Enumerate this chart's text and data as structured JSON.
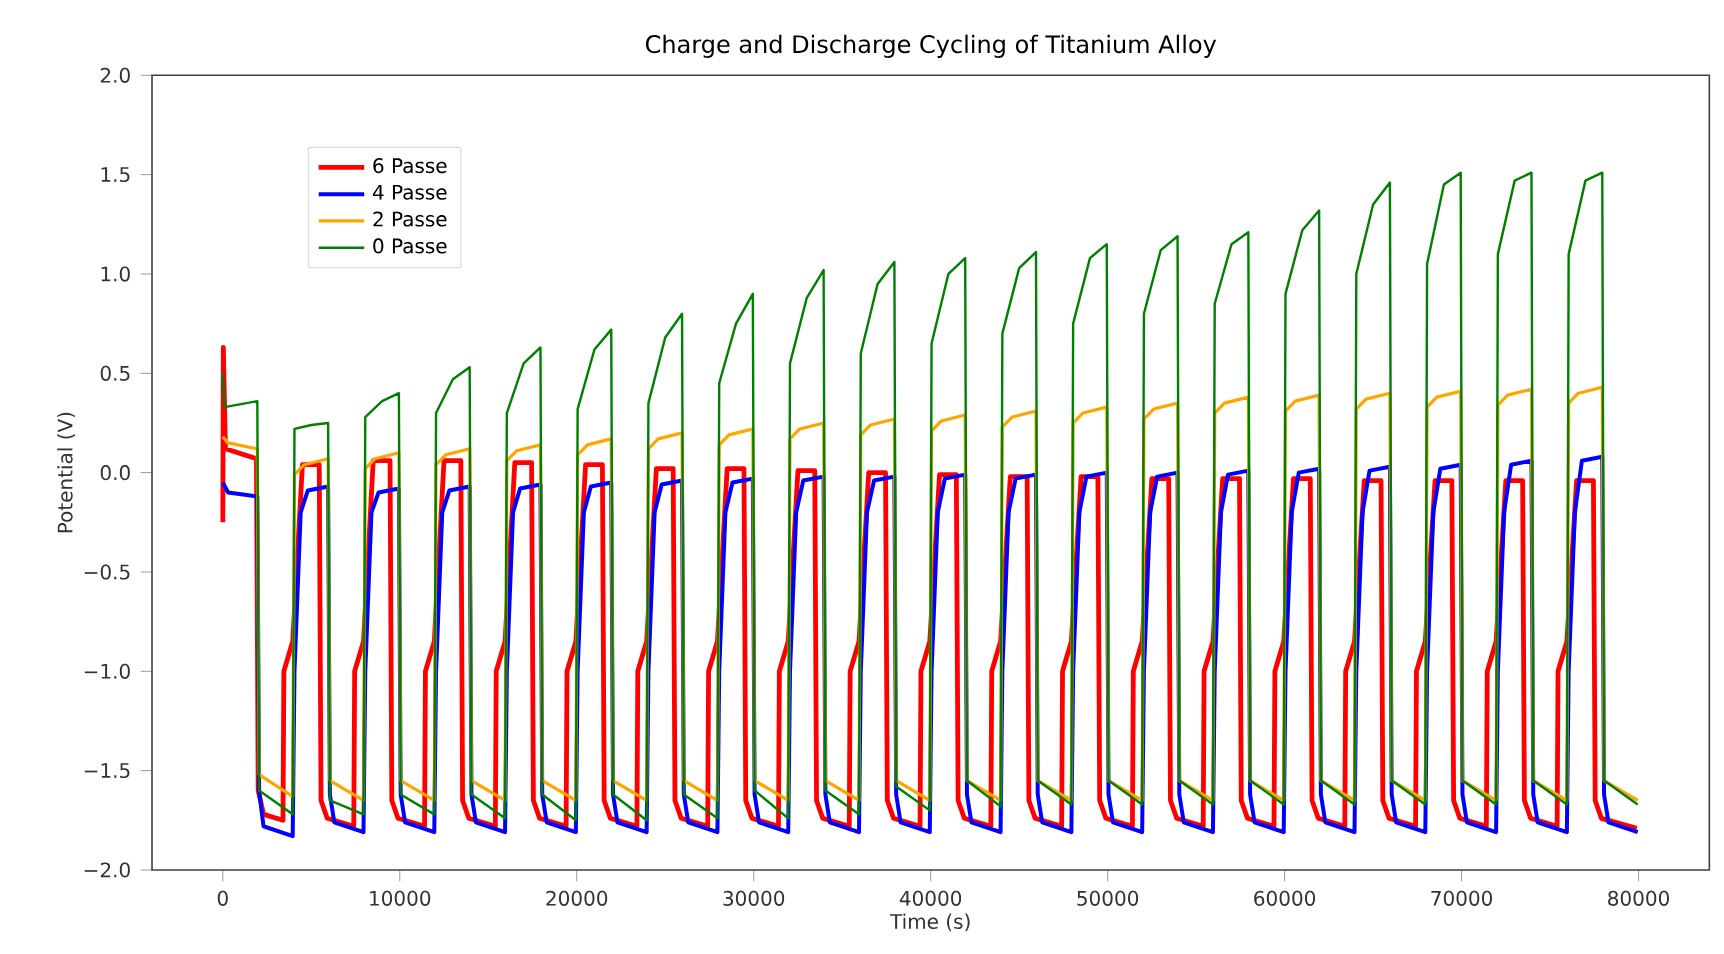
{
  "chart_data": {
    "type": "line",
    "title": "Charge and Discharge Cycling of Titanium Alloy",
    "xlabel": "Time (s)",
    "ylabel": "Potential (V)",
    "xlim": [
      -4000,
      84000
    ],
    "ylim": [
      -2,
      2
    ],
    "xticks": [
      0,
      10000,
      20000,
      30000,
      40000,
      50000,
      60000,
      70000,
      80000
    ],
    "yticks": [
      {
        "value": -2,
        "label": "−2.0"
      },
      {
        "value": -1.5,
        "label": "−1.5"
      },
      {
        "value": -1,
        "label": "−1.0"
      },
      {
        "value": -0.5,
        "label": "−0.5"
      },
      {
        "value": 0,
        "label": "0.0"
      },
      {
        "value": 0.5,
        "label": "0.5"
      },
      {
        "value": 1,
        "label": "1.0"
      },
      {
        "value": 1.5,
        "label": "1.5"
      },
      {
        "value": 2,
        "label": "2.0"
      }
    ],
    "legend": "top left",
    "grid": false,
    "marker": "none",
    "line_style": "solid",
    "series": [
      {
        "name": "6 Passe",
        "color": "#ff0000",
        "x": [
          0,
          30,
          150,
          1900,
          2000,
          2300,
          3400,
          3450,
          3950,
          4500,
          5450,
          5550,
          5900,
          7400,
          7450,
          7950,
          8500,
          9450,
          9550,
          9900,
          11400,
          11450,
          11950,
          12500,
          13450,
          13550,
          13900,
          15400,
          15450,
          15950,
          16500,
          17450,
          17550,
          17900,
          19400,
          19450,
          19950,
          20500,
          21450,
          21550,
          21900,
          23400,
          23450,
          23950,
          24500,
          25450,
          25550,
          25900,
          27400,
          27450,
          27950,
          28500,
          29450,
          29550,
          29900,
          31400,
          31450,
          31950,
          32500,
          33450,
          33550,
          33900,
          35400,
          35450,
          35950,
          36500,
          37450,
          37550,
          37900,
          39400,
          39450,
          39950,
          40500,
          41450,
          41550,
          41900,
          43400,
          43450,
          43950,
          44500,
          45450,
          45550,
          45900,
          47400,
          47450,
          47950,
          48500,
          49450,
          49550,
          49900,
          51400,
          51450,
          51950,
          52500,
          53450,
          53550,
          53900,
          55400,
          55450,
          55950,
          56500,
          57450,
          57550,
          57900,
          59400,
          59450,
          59950,
          60500,
          61450,
          61550,
          61900,
          63400,
          63450,
          63950,
          64500,
          65450,
          65550,
          65900,
          67400,
          67450,
          67950,
          68500,
          69450,
          69550,
          69900,
          71400,
          71450,
          71950,
          72500,
          73450,
          73550,
          73900,
          75400,
          75450,
          75950,
          76500,
          77450,
          77550,
          77900,
          79900
        ],
        "values": [
          -0.25,
          0.63,
          0.12,
          0.07,
          -1.6,
          -1.72,
          -1.75,
          -1.0,
          -0.85,
          0.04,
          0.04,
          -1.65,
          -1.74,
          -1.78,
          -1.0,
          -0.85,
          0.06,
          0.06,
          -1.65,
          -1.74,
          -1.78,
          -1.0,
          -0.85,
          0.06,
          0.06,
          -1.65,
          -1.74,
          -1.78,
          -1.0,
          -0.85,
          0.05,
          0.05,
          -1.65,
          -1.74,
          -1.78,
          -1.0,
          -0.85,
          0.04,
          0.04,
          -1.65,
          -1.74,
          -1.78,
          -1.0,
          -0.85,
          0.02,
          0.02,
          -1.65,
          -1.74,
          -1.78,
          -1.0,
          -0.85,
          0.02,
          0.02,
          -1.65,
          -1.74,
          -1.78,
          -1.0,
          -0.85,
          0.01,
          0.01,
          -1.65,
          -1.74,
          -1.78,
          -1.0,
          -0.85,
          0.0,
          0.0,
          -1.65,
          -1.74,
          -1.78,
          -1.0,
          -0.85,
          -0.01,
          -0.01,
          -1.65,
          -1.74,
          -1.78,
          -1.0,
          -0.85,
          -0.02,
          -0.02,
          -1.65,
          -1.74,
          -1.78,
          -1.0,
          -0.85,
          -0.02,
          -0.02,
          -1.65,
          -1.74,
          -1.78,
          -1.0,
          -0.85,
          -0.03,
          -0.03,
          -1.65,
          -1.74,
          -1.78,
          -1.0,
          -0.85,
          -0.03,
          -0.03,
          -1.65,
          -1.74,
          -1.78,
          -1.0,
          -0.85,
          -0.03,
          -0.03,
          -1.65,
          -1.74,
          -1.78,
          -1.0,
          -0.85,
          -0.04,
          -0.04,
          -1.65,
          -1.74,
          -1.78,
          -1.0,
          -0.85,
          -0.04,
          -0.04,
          -1.65,
          -1.74,
          -1.78,
          -1.0,
          -0.85,
          -0.04,
          -0.04,
          -1.65,
          -1.74,
          -1.78,
          -1.0,
          -0.85,
          -0.04,
          -0.04,
          -1.65,
          -1.74,
          -1.79
        ]
      },
      {
        "name": "4 Passe",
        "color": "#0000ff",
        "x": [
          0,
          300,
          1950,
          2050,
          2300,
          3950,
          4050,
          4400,
          4800,
          5950,
          6050,
          6300,
          7950,
          8050,
          8400,
          8800,
          9950,
          10050,
          10300,
          11950,
          12050,
          12400,
          12800,
          13950,
          14050,
          14300,
          15950,
          16050,
          16400,
          16800,
          17950,
          18050,
          18300,
          19950,
          20050,
          20400,
          20800,
          21950,
          22050,
          22300,
          23950,
          24050,
          24400,
          24800,
          25950,
          26050,
          26300,
          27950,
          28050,
          28400,
          28800,
          29950,
          30050,
          30300,
          31950,
          32050,
          32400,
          32800,
          33950,
          34050,
          34300,
          35950,
          36050,
          36400,
          36800,
          37950,
          38050,
          38300,
          39950,
          40050,
          40400,
          40800,
          41950,
          42050,
          42300,
          43950,
          44050,
          44400,
          44800,
          45950,
          46050,
          46300,
          47950,
          48050,
          48400,
          48800,
          49950,
          50050,
          50300,
          51950,
          52050,
          52400,
          52800,
          53950,
          54050,
          54300,
          55950,
          56050,
          56400,
          56800,
          57950,
          58050,
          58300,
          59950,
          60050,
          60400,
          60800,
          61950,
          62050,
          62300,
          63950,
          64050,
          64400,
          64800,
          65950,
          66050,
          66300,
          67950,
          68050,
          68400,
          68800,
          69950,
          70050,
          70300,
          71950,
          72050,
          72400,
          72800,
          73950,
          74050,
          74300,
          75950,
          76050,
          76400,
          76800,
          77950,
          78050,
          78300,
          79950
        ],
        "values": [
          -0.05,
          -0.1,
          -0.12,
          -1.6,
          -1.78,
          -1.83,
          -1.0,
          -0.2,
          -0.09,
          -0.07,
          -1.62,
          -1.76,
          -1.81,
          -1.0,
          -0.2,
          -0.1,
          -0.08,
          -1.62,
          -1.76,
          -1.81,
          -1.0,
          -0.2,
          -0.09,
          -0.07,
          -1.62,
          -1.76,
          -1.81,
          -1.0,
          -0.2,
          -0.08,
          -0.06,
          -1.62,
          -1.76,
          -1.81,
          -1.0,
          -0.2,
          -0.07,
          -0.05,
          -1.62,
          -1.76,
          -1.81,
          -1.0,
          -0.2,
          -0.06,
          -0.04,
          -1.62,
          -1.76,
          -1.81,
          -1.0,
          -0.2,
          -0.05,
          -0.03,
          -1.62,
          -1.76,
          -1.81,
          -1.0,
          -0.2,
          -0.04,
          -0.02,
          -1.62,
          -1.76,
          -1.81,
          -1.0,
          -0.2,
          -0.04,
          -0.02,
          -1.62,
          -1.76,
          -1.81,
          -1.0,
          -0.2,
          -0.03,
          -0.01,
          -1.62,
          -1.76,
          -1.81,
          -1.0,
          -0.2,
          -0.03,
          -0.01,
          -1.62,
          -1.76,
          -1.81,
          -1.0,
          -0.2,
          -0.02,
          0.0,
          -1.62,
          -1.76,
          -1.81,
          -1.0,
          -0.2,
          -0.02,
          0.0,
          -1.62,
          -1.76,
          -1.81,
          -1.0,
          -0.2,
          -0.01,
          0.01,
          -1.62,
          -1.76,
          -1.81,
          -1.0,
          -0.2,
          0.0,
          0.02,
          -1.62,
          -1.76,
          -1.81,
          -1.0,
          -0.2,
          0.01,
          0.03,
          -1.62,
          -1.76,
          -1.81,
          -1.0,
          -0.2,
          0.02,
          0.04,
          -1.62,
          -1.76,
          -1.81,
          -1.0,
          -0.2,
          0.04,
          0.06,
          -1.62,
          -1.76,
          -1.81,
          -1.0,
          -0.2,
          0.06,
          0.08,
          -1.62,
          -1.76,
          -1.81
        ]
      },
      {
        "name": "2 Passe",
        "color": "#ffa500",
        "x": [
          0,
          300,
          1950,
          2050,
          3950,
          4050,
          4600,
          5950,
          6050,
          7950,
          8050,
          8600,
          9950,
          10050,
          11950,
          12050,
          12600,
          13950,
          14050,
          15950,
          16050,
          16600,
          17950,
          18050,
          19950,
          20050,
          20600,
          21950,
          22050,
          23950,
          24050,
          24600,
          25950,
          26050,
          27950,
          28050,
          28600,
          29950,
          30050,
          31950,
          32050,
          32600,
          33950,
          34050,
          35950,
          36050,
          36600,
          37950,
          38050,
          39950,
          40050,
          40600,
          41950,
          42050,
          43950,
          44050,
          44600,
          45950,
          46050,
          47950,
          48050,
          48600,
          49950,
          50050,
          51950,
          52050,
          52600,
          53950,
          54050,
          55950,
          56050,
          56600,
          57950,
          58050,
          59950,
          60050,
          60600,
          61950,
          62050,
          63950,
          64050,
          64600,
          65950,
          66050,
          67950,
          68050,
          68600,
          69950,
          70050,
          71950,
          72050,
          72600,
          73950,
          74050,
          75950,
          76050,
          76600,
          77950,
          78050,
          79950
        ],
        "values": [
          0.18,
          0.15,
          0.12,
          -1.52,
          -1.63,
          -0.01,
          0.04,
          0.07,
          -1.55,
          -1.65,
          0.02,
          0.07,
          0.1,
          -1.55,
          -1.65,
          0.04,
          0.09,
          0.12,
          -1.55,
          -1.65,
          0.06,
          0.11,
          0.14,
          -1.55,
          -1.65,
          0.09,
          0.14,
          0.17,
          -1.55,
          -1.65,
          0.12,
          0.17,
          0.2,
          -1.55,
          -1.65,
          0.14,
          0.19,
          0.22,
          -1.55,
          -1.65,
          0.17,
          0.22,
          0.25,
          -1.55,
          -1.65,
          0.19,
          0.24,
          0.27,
          -1.55,
          -1.65,
          0.21,
          0.26,
          0.29,
          -1.55,
          -1.65,
          0.23,
          0.28,
          0.31,
          -1.55,
          -1.65,
          0.25,
          0.3,
          0.33,
          -1.55,
          -1.65,
          0.27,
          0.32,
          0.35,
          -1.55,
          -1.65,
          0.3,
          0.35,
          0.38,
          -1.55,
          -1.65,
          0.31,
          0.36,
          0.39,
          -1.55,
          -1.65,
          0.32,
          0.37,
          0.4,
          -1.55,
          -1.65,
          0.33,
          0.38,
          0.41,
          -1.55,
          -1.65,
          0.34,
          0.39,
          0.42,
          -1.55,
          -1.65,
          0.35,
          0.4,
          0.43,
          -1.55,
          -1.65
        ]
      },
      {
        "name": "0 Passe",
        "color": "#008000",
        "x": [
          0,
          100,
          1950,
          2050,
          3950,
          4050,
          5000,
          5950,
          6050,
          7950,
          8050,
          9000,
          9950,
          10050,
          11950,
          12050,
          13000,
          13950,
          14050,
          15950,
          16050,
          17000,
          17950,
          18050,
          19950,
          20050,
          21000,
          21950,
          22050,
          23950,
          24050,
          25000,
          25950,
          26050,
          27950,
          28050,
          29000,
          29950,
          30050,
          31950,
          32050,
          33000,
          33950,
          34050,
          35950,
          36050,
          37000,
          37950,
          38050,
          39950,
          40050,
          41000,
          41950,
          42050,
          43950,
          44050,
          45000,
          45950,
          46050,
          47950,
          48050,
          49000,
          49950,
          50050,
          51950,
          52050,
          53000,
          53950,
          54050,
          55950,
          56050,
          57000,
          57950,
          58050,
          59950,
          60050,
          61000,
          61950,
          62050,
          63950,
          64050,
          65000,
          65950,
          66050,
          67950,
          68050,
          69000,
          69950,
          70050,
          71950,
          72050,
          73000,
          73950,
          74050,
          75950,
          76050,
          77000,
          77950,
          78050,
          79950
        ],
        "values": [
          0.5,
          0.33,
          0.36,
          -1.6,
          -1.72,
          0.22,
          0.24,
          0.25,
          -1.65,
          -1.72,
          0.28,
          0.36,
          0.4,
          -1.62,
          -1.72,
          0.3,
          0.47,
          0.53,
          -1.62,
          -1.74,
          0.3,
          0.55,
          0.63,
          -1.62,
          -1.75,
          0.32,
          0.62,
          0.72,
          -1.62,
          -1.75,
          0.35,
          0.68,
          0.8,
          -1.62,
          -1.74,
          0.45,
          0.75,
          0.9,
          -1.6,
          -1.74,
          0.55,
          0.88,
          1.02,
          -1.6,
          -1.72,
          0.6,
          0.95,
          1.06,
          -1.58,
          -1.7,
          0.65,
          1.0,
          1.08,
          -1.55,
          -1.68,
          0.7,
          1.03,
          1.11,
          -1.55,
          -1.67,
          0.75,
          1.08,
          1.15,
          -1.55,
          -1.67,
          0.8,
          1.12,
          1.19,
          -1.55,
          -1.67,
          0.85,
          1.15,
          1.21,
          -1.55,
          -1.67,
          0.9,
          1.22,
          1.32,
          -1.55,
          -1.67,
          1.0,
          1.35,
          1.46,
          -1.55,
          -1.67,
          1.05,
          1.45,
          1.51,
          -1.55,
          -1.67,
          1.1,
          1.47,
          1.51,
          -1.55,
          -1.67,
          1.1,
          1.47,
          1.51,
          -1.55,
          -1.67
        ]
      }
    ]
  }
}
